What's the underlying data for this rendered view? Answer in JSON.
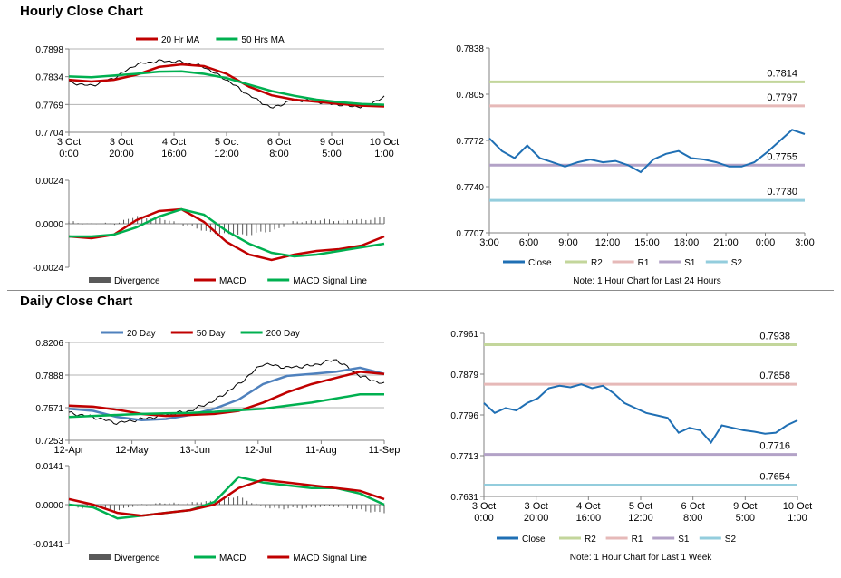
{
  "titles": {
    "hourly": "Hourly Close Chart",
    "daily": "Daily Close Chart"
  },
  "colors": {
    "ma20": "#c00000",
    "ma50": "#00b050",
    "close": "#1f6fb4",
    "r2": "#c3d69b",
    "r1": "#e6b9b8",
    "s1": "#b3a2c7",
    "s2": "#93cddd",
    "price": "#000000",
    "divergence": "#595959",
    "day20": "#4f81bd"
  },
  "chart_data": [
    {
      "id": "hourly-price",
      "type": "line",
      "legend": [
        "20 Hr MA",
        "50 Hrs MA"
      ],
      "yticks": [
        "0.7898",
        "0.7834",
        "0.7769",
        "0.7704"
      ],
      "ylim": [
        0.7704,
        0.7898
      ],
      "xticks": [
        "3 Oct\n0:00",
        "3 Oct\n20:00",
        "4 Oct\n16:00",
        "5 Oct\n12:00",
        "6 Oct\n8:00",
        "9 Oct\n5:00",
        "10 Oct\n1:00"
      ],
      "series": [
        {
          "name": "20 Hr MA",
          "values": [
            0.7826,
            0.7822,
            0.7826,
            0.7838,
            0.7856,
            0.7862,
            0.7858,
            0.784,
            0.781,
            0.779,
            0.778,
            0.7775,
            0.777,
            0.7766,
            0.7764
          ]
        },
        {
          "name": "50 Hrs MA",
          "values": [
            0.7834,
            0.7832,
            0.7836,
            0.784,
            0.7845,
            0.7846,
            0.784,
            0.783,
            0.7815,
            0.78,
            0.7789,
            0.778,
            0.7774,
            0.777,
            0.7768
          ]
        },
        {
          "values": [
            0.782,
            0.7812,
            0.783,
            0.7862,
            0.787,
            0.7868,
            0.7856,
            0.7826,
            0.779,
            0.776,
            0.778,
            0.7775,
            0.7768,
            0.7763,
            0.7785
          ]
        }
      ]
    },
    {
      "id": "hourly-macd",
      "type": "line",
      "legend": [
        "Divergence",
        "MACD",
        "MACD Signal Line"
      ],
      "yticks": [
        "0.0024",
        "0.0000",
        "-0.0024"
      ],
      "ylim": [
        -0.0024,
        0.0024
      ],
      "series": [
        {
          "name": "MACD",
          "values": [
            -0.0007,
            -0.0008,
            -0.0006,
            0.0002,
            0.0007,
            0.0008,
            0.0001,
            -0.001,
            -0.0017,
            -0.002,
            -0.0017,
            -0.0015,
            -0.0014,
            -0.0012,
            -0.0007
          ]
        },
        {
          "name": "MACD Signal Line",
          "values": [
            -0.0007,
            -0.0007,
            -0.0006,
            -0.0002,
            0.0004,
            0.0008,
            0.0005,
            -0.0004,
            -0.0011,
            -0.0016,
            -0.0018,
            -0.0017,
            -0.0015,
            -0.0013,
            -0.0011
          ]
        },
        {
          "name": "Divergence",
          "values": [
            0.0001,
            0.0,
            0.0,
            0.0004,
            0.0003,
            0.0,
            -0.0004,
            -0.0006,
            -0.0006,
            -0.0004,
            0.0001,
            0.0002,
            0.0002,
            0.0002,
            0.0004
          ]
        }
      ]
    },
    {
      "id": "hourly-close",
      "type": "line",
      "legend": [
        "Close",
        "R2",
        "R1",
        "S1",
        "S2"
      ],
      "note": "Note: 1 Hour Chart for Last 24 Hours",
      "yticks": [
        "0.7838",
        "0.7805",
        "0.7772",
        "0.7740",
        "0.7707"
      ],
      "ylim": [
        0.7707,
        0.7838
      ],
      "xticks": [
        "3:00",
        "6:00",
        "9:00",
        "12:00",
        "15:00",
        "18:00",
        "21:00",
        "0:00",
        "3:00"
      ],
      "levels": [
        {
          "name": "R2",
          "value": 0.7814,
          "label": "0.7814"
        },
        {
          "name": "R1",
          "value": 0.7797,
          "label": "0.7797"
        },
        {
          "name": "S1",
          "value": 0.7755,
          "label": "0.7755"
        },
        {
          "name": "S2",
          "value": 0.773,
          "label": "0.7730"
        }
      ],
      "series": [
        {
          "name": "Close",
          "values": [
            0.7774,
            0.7765,
            0.776,
            0.7769,
            0.776,
            0.7757,
            0.7754,
            0.7757,
            0.7759,
            0.7757,
            0.7758,
            0.7755,
            0.775,
            0.7759,
            0.7763,
            0.7765,
            0.776,
            0.7759,
            0.7757,
            0.7754,
            0.7754,
            0.7757,
            0.7764,
            0.7772,
            0.778,
            0.7777
          ]
        }
      ]
    },
    {
      "id": "daily-price",
      "type": "line",
      "legend": [
        "20 Day",
        "50 Day",
        "200 Day"
      ],
      "yticks": [
        "0.8206",
        "0.7888",
        "0.7571",
        "0.7253"
      ],
      "ylim": [
        0.7253,
        0.8206
      ],
      "xticks": [
        "12-Apr",
        "12-May",
        "13-Jun",
        "12-Jul",
        "11-Aug",
        "11-Sep"
      ],
      "series": [
        {
          "name": "20 Day",
          "values": [
            0.756,
            0.754,
            0.748,
            0.745,
            0.746,
            0.75,
            0.756,
            0.765,
            0.78,
            0.788,
            0.79,
            0.792,
            0.796,
            0.79
          ]
        },
        {
          "name": "50 Day",
          "values": [
            0.759,
            0.758,
            0.755,
            0.751,
            0.749,
            0.75,
            0.751,
            0.754,
            0.762,
            0.772,
            0.78,
            0.786,
            0.792,
            0.79
          ]
        },
        {
          "name": "200 Day",
          "values": [
            0.748,
            0.749,
            0.75,
            0.751,
            0.7515,
            0.752,
            0.753,
            0.7545,
            0.756,
            0.759,
            0.762,
            0.766,
            0.77,
            0.77
          ]
        },
        {
          "values": [
            0.752,
            0.748,
            0.742,
            0.746,
            0.75,
            0.754,
            0.764,
            0.78,
            0.8,
            0.796,
            0.798,
            0.804,
            0.788,
            0.78
          ]
        }
      ]
    },
    {
      "id": "daily-macd",
      "type": "line",
      "legend": [
        "Divergence",
        "MACD",
        "MACD Signal Line"
      ],
      "yticks": [
        "0.0141",
        "0.0000",
        "-0.0141"
      ],
      "ylim": [
        -0.0141,
        0.0141
      ],
      "series": [
        {
          "name": "MACD",
          "values": [
            0.0,
            -0.001,
            -0.005,
            -0.004,
            -0.003,
            -0.002,
            0.001,
            0.01,
            0.008,
            0.007,
            0.006,
            0.006,
            0.004,
            0.0
          ]
        },
        {
          "name": "MACD Signal Line",
          "values": [
            0.002,
            0.0,
            -0.003,
            -0.004,
            -0.003,
            -0.002,
            0.0,
            0.006,
            0.009,
            0.008,
            0.007,
            0.006,
            0.005,
            0.002
          ]
        },
        {
          "name": "Divergence",
          "values": [
            -0.001,
            -0.001,
            -0.002,
            0.0,
            0.0005,
            0.0005,
            0.0015,
            0.003,
            -0.001,
            -0.0015,
            -0.001,
            -0.0005,
            -0.002,
            -0.003
          ]
        }
      ]
    },
    {
      "id": "daily-close",
      "type": "line",
      "legend": [
        "Close",
        "R2",
        "R1",
        "S1",
        "S2"
      ],
      "note": "Note: 1 Hour Chart for Last 1 Week",
      "yticks": [
        "0.7961",
        "0.7879",
        "0.7796",
        "0.7713",
        "0.7631"
      ],
      "ylim": [
        0.7631,
        0.7961
      ],
      "xticks": [
        "3 Oct\n0:00",
        "3 Oct\n20:00",
        "4 Oct\n16:00",
        "5 Oct\n12:00",
        "6 Oct\n8:00",
        "9 Oct\n5:00",
        "10 Oct\n1:00"
      ],
      "levels": [
        {
          "name": "R2",
          "value": 0.7938,
          "label": "0.7938"
        },
        {
          "name": "R1",
          "value": 0.7858,
          "label": "0.7858"
        },
        {
          "name": "S1",
          "value": 0.7716,
          "label": "0.7716"
        },
        {
          "name": "S2",
          "value": 0.7654,
          "label": "0.7654"
        }
      ],
      "series": [
        {
          "name": "Close",
          "values": [
            0.782,
            0.78,
            0.781,
            0.7805,
            0.782,
            0.783,
            0.785,
            0.7855,
            0.7852,
            0.7858,
            0.785,
            0.7855,
            0.784,
            0.782,
            0.781,
            0.78,
            0.7795,
            0.779,
            0.776,
            0.777,
            0.7765,
            0.774,
            0.7775,
            0.777,
            0.7765,
            0.7762,
            0.7758,
            0.776,
            0.7775,
            0.7785
          ]
        }
      ]
    }
  ]
}
